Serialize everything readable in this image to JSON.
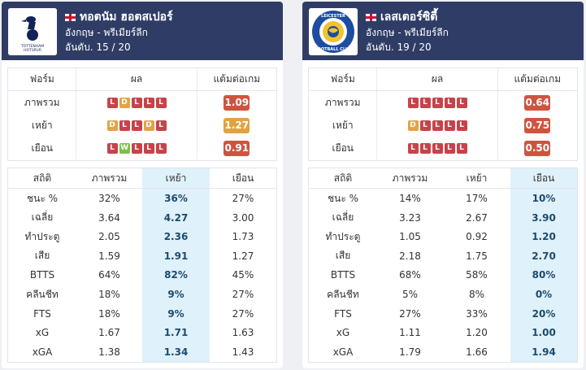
{
  "labels": {
    "form": "ฟอร์ม",
    "result": "ผล",
    "ppg": "แต้มต่อเกม",
    "overall": "ภาพรวม",
    "home": "เหย้า",
    "away": "เยือน",
    "stats": "สถิติ"
  },
  "stat_labels": [
    "ชนะ %",
    "เฉลี่ย",
    "ทำประตู",
    "เสีย",
    "BTTS",
    "คลีนชีท",
    "FTS",
    "xG",
    "xGA"
  ],
  "teams": [
    {
      "name": "ทอตนัม ฮอตสเปอร์",
      "league": "อังกฤษ - พรีเมียร์ลีก",
      "rank": "อันดับ. 15 / 20",
      "logo_icon": "tottenham-crest-icon",
      "highlight": 1,
      "form": [
        {
          "results": [
            "L",
            "D",
            "L",
            "L",
            "L"
          ],
          "ppg": "1.09",
          "ppg_color": "red"
        },
        {
          "results": [
            "D",
            "L",
            "L",
            "D",
            "L"
          ],
          "ppg": "1.27",
          "ppg_color": "amber"
        },
        {
          "results": [
            "L",
            "W",
            "L",
            "L",
            "L"
          ],
          "ppg": "0.91",
          "ppg_color": "red"
        }
      ],
      "stats": [
        [
          "32%",
          "36%",
          "27%"
        ],
        [
          "3.64",
          "4.27",
          "3.00"
        ],
        [
          "2.05",
          "2.36",
          "1.73"
        ],
        [
          "1.59",
          "1.91",
          "1.27"
        ],
        [
          "64%",
          "82%",
          "45%"
        ],
        [
          "18%",
          "9%",
          "27%"
        ],
        [
          "18%",
          "9%",
          "27%"
        ],
        [
          "1.67",
          "1.71",
          "1.63"
        ],
        [
          "1.38",
          "1.34",
          "1.43"
        ]
      ]
    },
    {
      "name": "เลสเตอร์ซิตี้",
      "league": "อังกฤษ - พรีเมียร์ลีก",
      "rank": "อันดับ. 19 / 20",
      "logo_icon": "leicester-city-crest-icon",
      "highlight": 2,
      "form": [
        {
          "results": [
            "L",
            "L",
            "L",
            "L",
            "L"
          ],
          "ppg": "0.64",
          "ppg_color": "red"
        },
        {
          "results": [
            "D",
            "L",
            "L",
            "L",
            "L"
          ],
          "ppg": "0.75",
          "ppg_color": "red"
        },
        {
          "results": [
            "L",
            "L",
            "L",
            "L",
            "L"
          ],
          "ppg": "0.50",
          "ppg_color": "red"
        }
      ],
      "stats": [
        [
          "14%",
          "17%",
          "10%"
        ],
        [
          "3.23",
          "2.67",
          "3.90"
        ],
        [
          "1.05",
          "0.92",
          "1.20"
        ],
        [
          "2.18",
          "1.75",
          "2.70"
        ],
        [
          "68%",
          "58%",
          "80%"
        ],
        [
          "5%",
          "8%",
          "0%"
        ],
        [
          "27%",
          "33%",
          "20%"
        ],
        [
          "1.11",
          "1.20",
          "1.00"
        ],
        [
          "1.79",
          "1.66",
          "1.94"
        ]
      ]
    }
  ],
  "colors": {
    "header_bg": "#2f3d66",
    "loss": "#c8424a",
    "draw": "#e0a447",
    "win": "#7cc246",
    "ppg_red": "#cf5440",
    "ppg_amber": "#e2a242",
    "highlight_col": "#dff1fb"
  }
}
